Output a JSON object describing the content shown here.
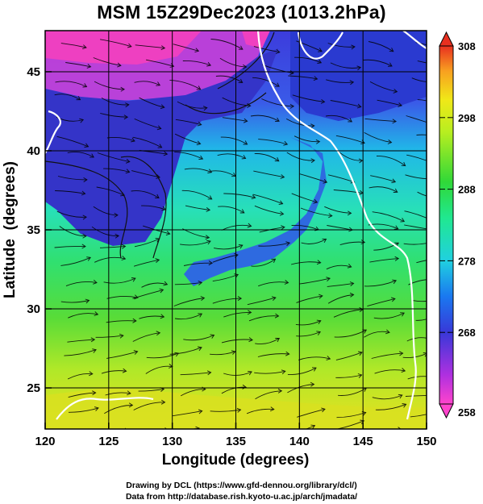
{
  "title": "MSM 15Z29Dec2023 (1013.2hPa)",
  "map": {
    "x_axis": {
      "label": "Longitude (degrees)",
      "range": [
        120,
        150
      ],
      "ticks": [
        120,
        125,
        130,
        135,
        140,
        145,
        150
      ]
    },
    "y_axis": {
      "label": "Latitude  (degrees)",
      "range": [
        22.4,
        47.6
      ],
      "ticks": [
        25,
        30,
        35,
        40,
        45
      ]
    },
    "gridlines": true,
    "field": "temperature (K) at 1013.2hPa",
    "streamlines": true,
    "white_contour": "273 K"
  },
  "colorbar": {
    "min": 258,
    "max": 308,
    "tick_labels": [
      258,
      268,
      278,
      288,
      298,
      308
    ],
    "colors": [
      "#ff44cc",
      "#9a30e8",
      "#3030d8",
      "#1a6ef0",
      "#20c8e8",
      "#20e8a0",
      "#30d840",
      "#b8ee20",
      "#f8e818",
      "#f8a020",
      "#e83020"
    ]
  },
  "credits": {
    "line1": "Drawing by DCL (https://www.gfd-dennou.org/library/dcl/)",
    "line2": "Data from http://database.rish.kyoto-u.ac.jp/arch/jmadata/"
  }
}
